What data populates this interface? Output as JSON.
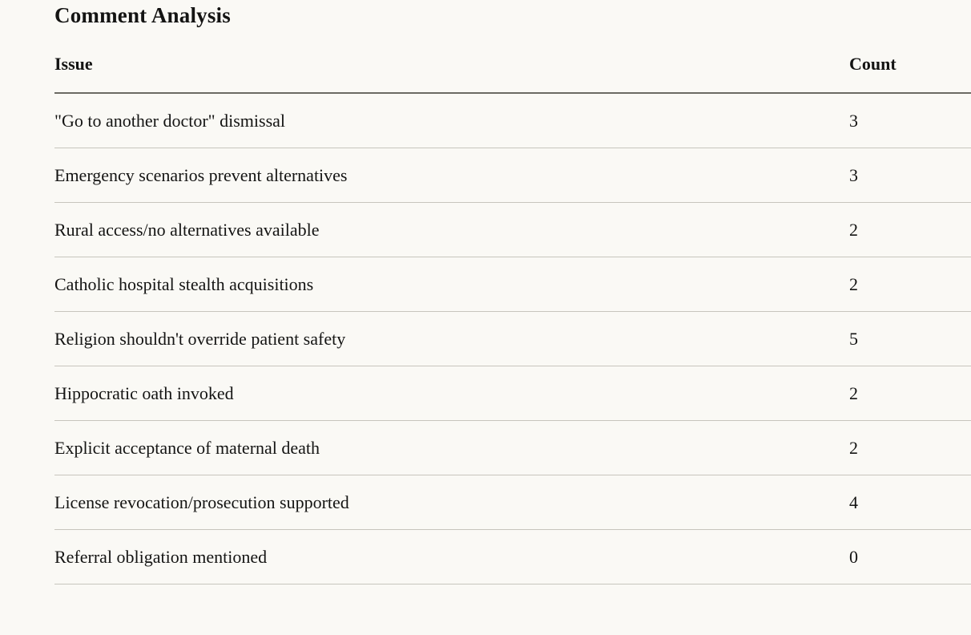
{
  "page": {
    "title": "Comment Analysis"
  },
  "table": {
    "columns": [
      "Issue",
      "Count"
    ],
    "rows": [
      {
        "issue": "\"Go to another doctor\" dismissal",
        "count": "3"
      },
      {
        "issue": "Emergency scenarios prevent alternatives",
        "count": "3"
      },
      {
        "issue": "Rural access/no alternatives available",
        "count": "2"
      },
      {
        "issue": "Catholic hospital stealth acquisitions",
        "count": "2"
      },
      {
        "issue": "Religion shouldn't override patient safety",
        "count": "5"
      },
      {
        "issue": "Hippocratic oath invoked",
        "count": "2"
      },
      {
        "issue": "Explicit acceptance of maternal death",
        "count": "2"
      },
      {
        "issue": "License revocation/prosecution supported",
        "count": "4"
      },
      {
        "issue": "Referral obligation mentioned",
        "count": "0"
      }
    ]
  },
  "colors": {
    "background": "#FAF9F5",
    "text": "#141413",
    "header_rule": "#6B6A63",
    "row_rule": "#C7C5BD"
  }
}
